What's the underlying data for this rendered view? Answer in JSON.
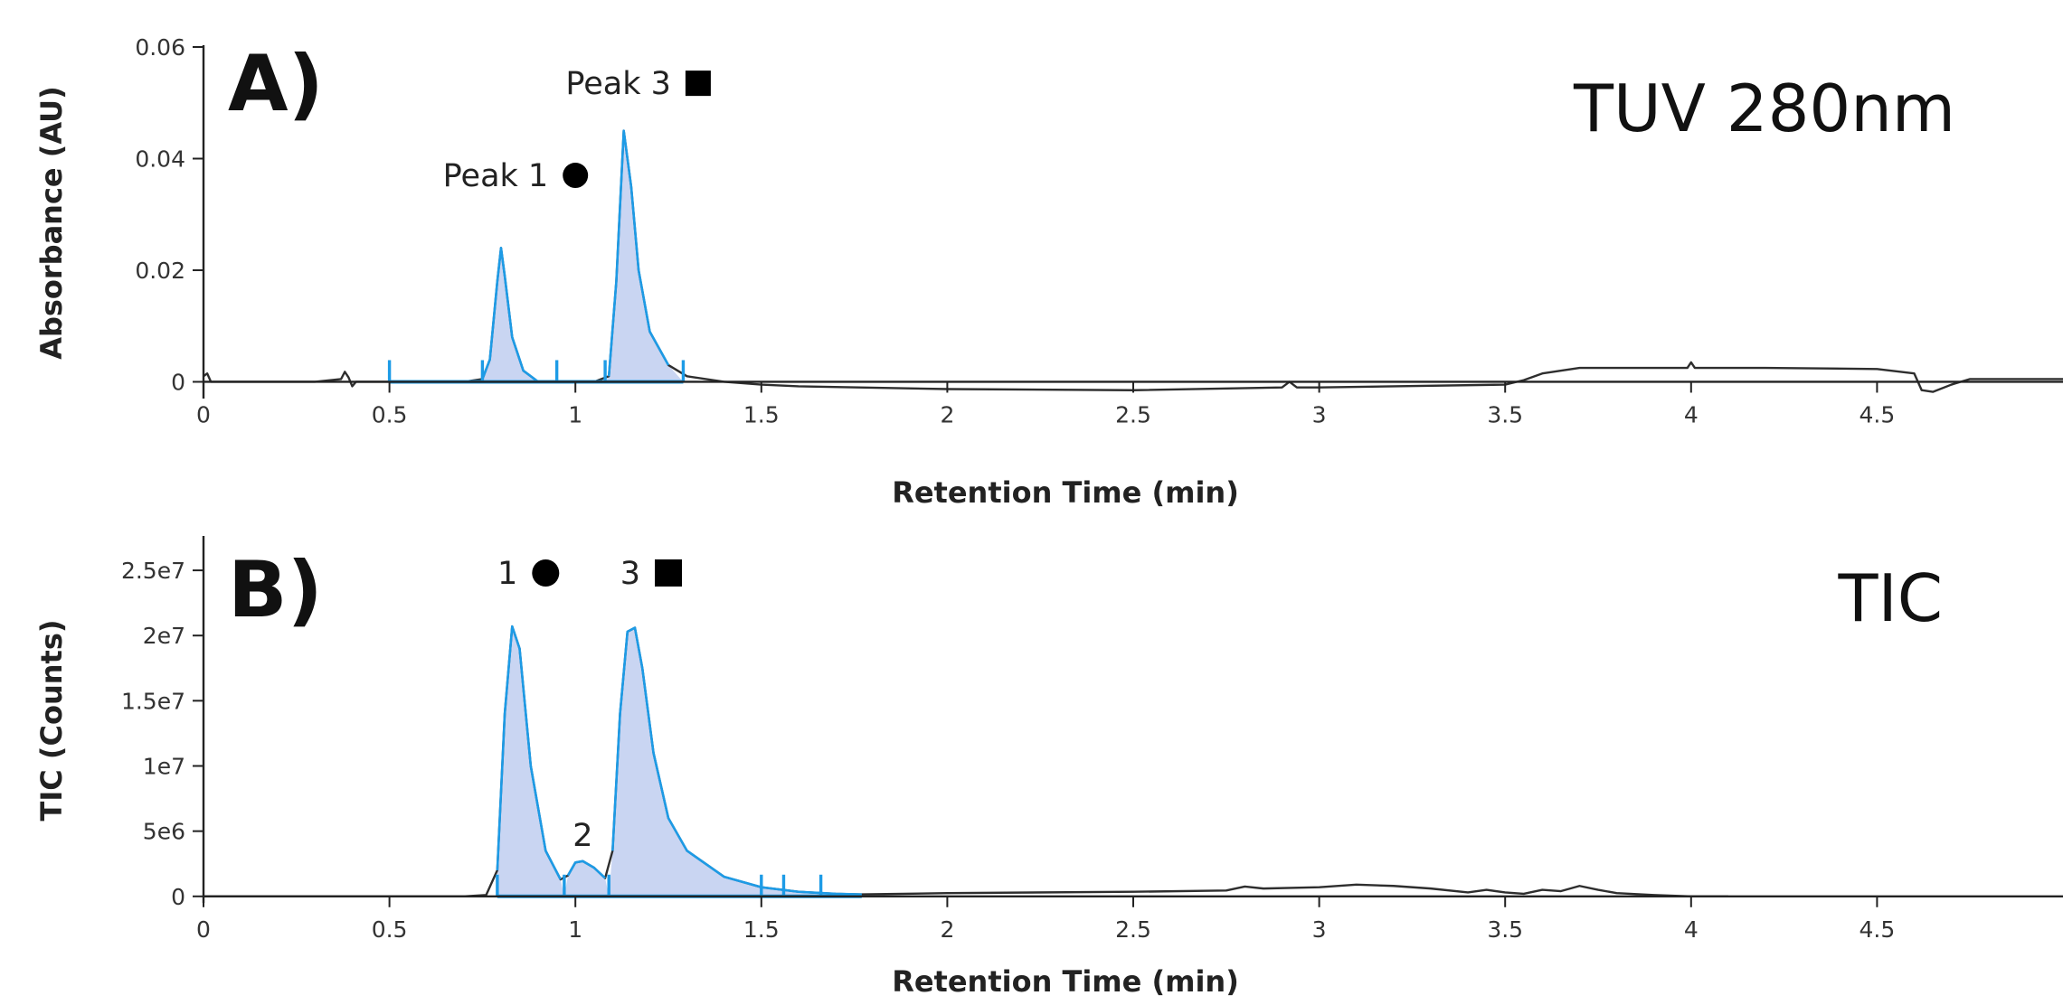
{
  "figure": {
    "panels": [
      {
        "letter": "A)",
        "corner_label": "TUV 280nm"
      },
      {
        "letter": "B)",
        "corner_label": "TIC"
      }
    ]
  },
  "colors": {
    "trace": "#2e2e2e",
    "peak_line": "#1d9be6",
    "peak_fill": "#c9d5f2",
    "axis": "#222222"
  },
  "chart_data": [
    {
      "type": "line",
      "title": "",
      "xlabel": "Retention Time (min)",
      "ylabel": "Absorbance (AU)",
      "xlim": [
        0,
        5
      ],
      "ylim": [
        -0.003,
        0.06
      ],
      "x_ticks": [
        0,
        0.5,
        1,
        1.5,
        2,
        2.5,
        3,
        3.5,
        4,
        4.5
      ],
      "x_tick_labels": [
        "0",
        "0.5",
        "1",
        "1.5",
        "2",
        "2.5",
        "3",
        "3.5",
        "4",
        "4.5"
      ],
      "y_ticks": [
        0,
        0.02,
        0.04,
        0.06
      ],
      "y_tick_labels": [
        "0",
        "0.02",
        "0.04",
        "0.06"
      ],
      "grid": false,
      "legend": "none",
      "series": [
        {
          "x": [
            0,
            0.01,
            0.02,
            0.1,
            0.2,
            0.3,
            0.37,
            0.38,
            0.39,
            0.4,
            0.41,
            0.5,
            0.6,
            0.7,
            0.75,
            0.77,
            0.79,
            0.8,
            0.81,
            0.83,
            0.86,
            0.9,
            0.95,
            1.0,
            1.05,
            1.09,
            1.11,
            1.13,
            1.15,
            1.17,
            1.2,
            1.25,
            1.3,
            1.4,
            1.5,
            1.6,
            2.0,
            2.5,
            2.9,
            2.92,
            2.94,
            3.0,
            3.5,
            3.55,
            3.6,
            3.7,
            3.9,
            3.99,
            4.0,
            4.01,
            4.2,
            4.5,
            4.6,
            4.62,
            4.65,
            4.7,
            4.75,
            5.0
          ],
          "y": [
            0.001,
            0.0015,
            0.0,
            0.0,
            0.0,
            0.0,
            0.0005,
            0.0018,
            0.0008,
            -0.0008,
            0.0,
            0.0,
            0.0,
            0.0,
            0.0005,
            0.004,
            0.018,
            0.024,
            0.019,
            0.008,
            0.002,
            0.0,
            0.0,
            0.0,
            0.0,
            0.001,
            0.018,
            0.045,
            0.035,
            0.02,
            0.009,
            0.003,
            0.001,
            0.0,
            -0.0005,
            -0.0008,
            -0.0013,
            -0.0015,
            -0.001,
            0.0,
            -0.001,
            -0.001,
            -0.0005,
            0.0003,
            0.0015,
            0.0025,
            0.0025,
            0.0025,
            0.0035,
            0.0025,
            0.0025,
            0.0023,
            0.0015,
            -0.0015,
            -0.0018,
            -0.0005,
            0.0005,
            0.0005
          ]
        }
      ],
      "integration": [
        {
          "start": 0.75,
          "end": 0.95
        },
        {
          "start": 1.08,
          "end": 1.29
        }
      ],
      "baseline_range": [
        0.5,
        1.29
      ],
      "event_ticks": [
        0.5,
        0.75,
        0.95,
        1.08,
        1.29
      ],
      "annotations": [
        {
          "text": "Peak 1",
          "marker": "circle",
          "x": 1.0,
          "y": 0.037
        },
        {
          "text": "Peak 3",
          "marker": "square",
          "x": 1.33,
          "y": 0.0535
        }
      ]
    },
    {
      "type": "line",
      "title": "",
      "xlabel": "Retention Time (min)",
      "ylabel": "TIC (Counts)",
      "xlim": [
        0,
        5
      ],
      "ylim": [
        -500000,
        27500000
      ],
      "x_ticks": [
        0,
        0.5,
        1,
        1.5,
        2,
        2.5,
        3,
        3.5,
        4,
        4.5
      ],
      "x_tick_labels": [
        "0",
        "0.5",
        "1",
        "1.5",
        "2",
        "2.5",
        "3",
        "3.5",
        "4",
        "4.5"
      ],
      "y_ticks": [
        0,
        5000000,
        10000000,
        15000000,
        20000000,
        25000000
      ],
      "y_tick_labels": [
        "0",
        "5e6",
        "1e7",
        "1.5e7",
        "2e7",
        "2.5e7"
      ],
      "grid": false,
      "legend": "none",
      "series": [
        {
          "x": [
            0,
            0.5,
            0.6,
            0.7,
            0.76,
            0.79,
            0.81,
            0.83,
            0.85,
            0.88,
            0.92,
            0.96,
            0.98,
            1.0,
            1.02,
            1.05,
            1.08,
            1.1,
            1.12,
            1.14,
            1.16,
            1.18,
            1.21,
            1.25,
            1.3,
            1.4,
            1.5,
            1.6,
            1.7,
            1.77,
            2.0,
            2.5,
            2.75,
            2.8,
            2.85,
            3.0,
            3.1,
            3.2,
            3.3,
            3.4,
            3.45,
            3.5,
            3.55,
            3.6,
            3.65,
            3.7,
            3.75,
            3.8,
            3.9,
            4.0,
            4.1
          ],
          "y": [
            0,
            0,
            0,
            0,
            100000,
            2000000,
            14000000,
            20700000,
            19000000,
            10000000,
            3500000,
            1300000,
            1600000,
            2600000,
            2700000,
            2200000,
            1400000,
            3500000,
            14000000,
            20300000,
            20600000,
            17500000,
            11000000,
            6000000,
            3500000,
            1500000,
            700000,
            350000,
            200000,
            150000,
            250000,
            350000,
            450000,
            750000,
            600000,
            700000,
            900000,
            800000,
            600000,
            300000,
            500000,
            300000,
            200000,
            500000,
            400000,
            800000,
            500000,
            250000,
            100000,
            0,
            0
          ]
        }
      ],
      "integration": [
        {
          "start": 0.79,
          "end": 0.97
        },
        {
          "start": 0.97,
          "end": 1.09
        },
        {
          "start": 1.09,
          "end": 1.77
        }
      ],
      "baseline_range": [
        0.79,
        1.77
      ],
      "event_ticks": [
        0.79,
        0.97,
        1.09,
        1.5,
        1.56,
        1.66
      ],
      "annotations": [
        {
          "text": "1",
          "marker": "circle",
          "x": 0.92,
          "y": 24800000
        },
        {
          "text": "3",
          "marker": "square",
          "x": 1.25,
          "y": 24800000
        },
        {
          "text": "2",
          "marker": "none",
          "x": 1.02,
          "y": 4700000
        }
      ]
    }
  ]
}
